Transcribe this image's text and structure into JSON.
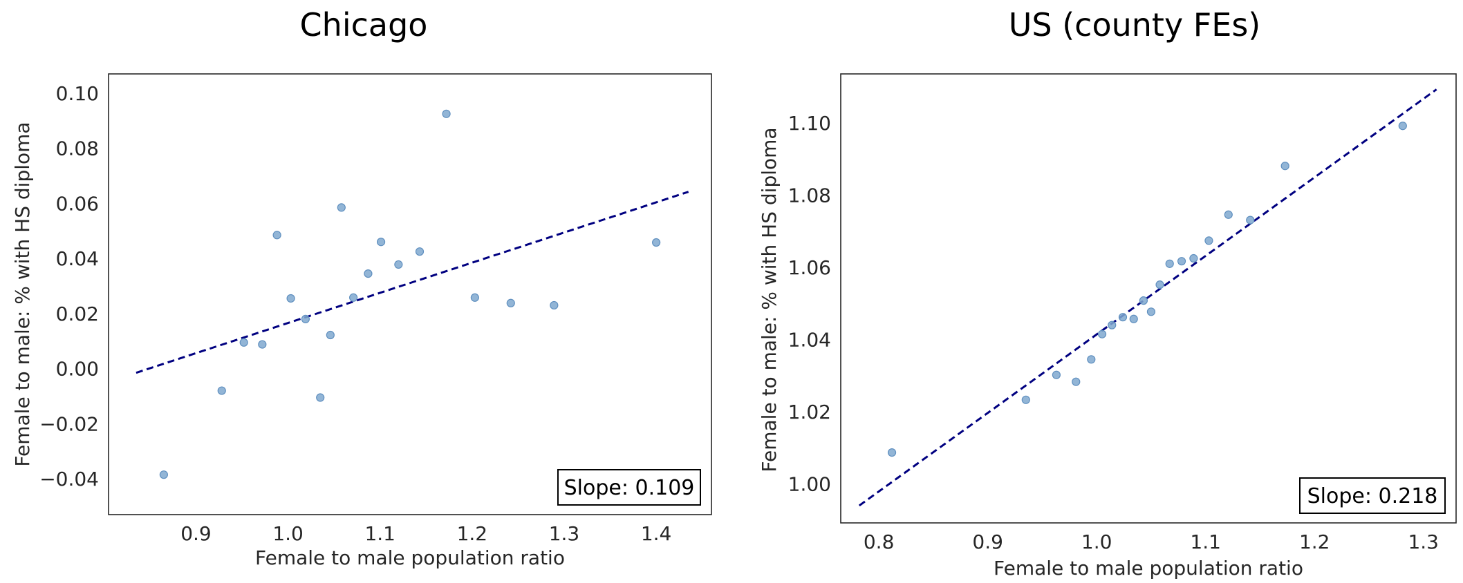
{
  "chart_data": [
    {
      "type": "scatter",
      "title": "Chicago",
      "xlabel": "Female to male population ratio",
      "ylabel": "Female to male: % with HS diploma",
      "xlim": [
        0.805,
        1.46
      ],
      "ylim": [
        -0.053,
        0.107
      ],
      "xticks": [
        "0.9",
        "1.0",
        "1.1",
        "1.2",
        "1.3",
        "1.4"
      ],
      "xtick_values": [
        0.9,
        1.0,
        1.1,
        1.2,
        1.3,
        1.4
      ],
      "yticks": [
        "−0.04",
        "−0.02",
        "0.00",
        "0.02",
        "0.04",
        "0.06",
        "0.08",
        "0.10"
      ],
      "ytick_values": [
        -0.04,
        -0.02,
        0.0,
        0.02,
        0.04,
        0.06,
        0.08,
        0.1
      ],
      "points": [
        {
          "x": 0.865,
          "y": -0.0385
        },
        {
          "x": 0.928,
          "y": -0.008
        },
        {
          "x": 0.952,
          "y": 0.0095
        },
        {
          "x": 0.972,
          "y": 0.0088
        },
        {
          "x": 0.988,
          "y": 0.0485
        },
        {
          "x": 1.003,
          "y": 0.0255
        },
        {
          "x": 1.019,
          "y": 0.018
        },
        {
          "x": 1.035,
          "y": -0.0105
        },
        {
          "x": 1.046,
          "y": 0.0122
        },
        {
          "x": 1.058,
          "y": 0.0585
        },
        {
          "x": 1.071,
          "y": 0.0258
        },
        {
          "x": 1.087,
          "y": 0.0345
        },
        {
          "x": 1.101,
          "y": 0.046
        },
        {
          "x": 1.12,
          "y": 0.0378
        },
        {
          "x": 1.143,
          "y": 0.0425
        },
        {
          "x": 1.172,
          "y": 0.0925
        },
        {
          "x": 1.203,
          "y": 0.0258
        },
        {
          "x": 1.242,
          "y": 0.0238
        },
        {
          "x": 1.289,
          "y": 0.023
        },
        {
          "x": 1.4,
          "y": 0.0458
        }
      ],
      "fit_line": {
        "x": [
          0.835,
          1.435
        ],
        "y": [
          -0.0015,
          0.0642
        ]
      },
      "annotation": "Slope: 0.109",
      "point_color": "#7fa8cf",
      "line_color": "#000080",
      "grid": false
    },
    {
      "type": "scatter",
      "title": "US (county FEs)",
      "xlabel": "Female to male population ratio",
      "ylabel": "Female to male: % with HS diploma",
      "xlim": [
        0.765,
        1.33
      ],
      "ylim": [
        0.9892,
        1.1136
      ],
      "xticks": [
        "0.8",
        "0.9",
        "1.0",
        "1.1",
        "1.2",
        "1.3"
      ],
      "xtick_values": [
        0.8,
        0.9,
        1.0,
        1.1,
        1.2,
        1.3
      ],
      "yticks": [
        "1.00",
        "1.02",
        "1.04",
        "1.06",
        "1.08",
        "1.10"
      ],
      "ytick_values": [
        1.0,
        1.02,
        1.04,
        1.06,
        1.08,
        1.1
      ],
      "points": [
        {
          "x": 0.812,
          "y": 1.0087
        },
        {
          "x": 0.935,
          "y": 1.0233
        },
        {
          "x": 0.963,
          "y": 1.0302
        },
        {
          "x": 0.981,
          "y": 1.0283
        },
        {
          "x": 0.995,
          "y": 1.0345
        },
        {
          "x": 1.005,
          "y": 1.0415
        },
        {
          "x": 1.014,
          "y": 1.044
        },
        {
          "x": 1.024,
          "y": 1.0462
        },
        {
          "x": 1.034,
          "y": 1.0457
        },
        {
          "x": 1.043,
          "y": 1.0508
        },
        {
          "x": 1.05,
          "y": 1.0477
        },
        {
          "x": 1.058,
          "y": 1.0552
        },
        {
          "x": 1.067,
          "y": 1.061
        },
        {
          "x": 1.078,
          "y": 1.0617
        },
        {
          "x": 1.089,
          "y": 1.0625
        },
        {
          "x": 1.103,
          "y": 1.0674
        },
        {
          "x": 1.121,
          "y": 1.0746
        },
        {
          "x": 1.141,
          "y": 1.0731
        },
        {
          "x": 1.173,
          "y": 1.0881
        },
        {
          "x": 1.281,
          "y": 1.0992
        }
      ],
      "fit_line": {
        "x": [
          0.782,
          1.312
        ],
        "y": [
          0.994,
          1.1093
        ]
      },
      "annotation": "Slope: 0.218",
      "point_color": "#7fa8cf",
      "line_color": "#000080",
      "grid": false
    }
  ]
}
